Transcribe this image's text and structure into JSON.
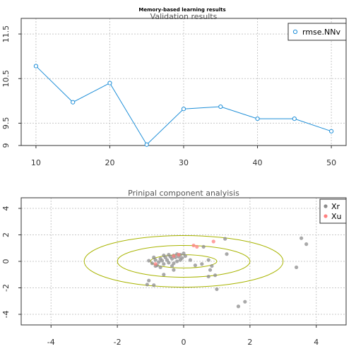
{
  "title": "Memory-based learning results",
  "chart_data": [
    {
      "type": "line",
      "title": "Validation results",
      "xlim": [
        8,
        52
      ],
      "ylim": [
        9.0,
        11.85
      ],
      "xticks": [
        10,
        20,
        30,
        40,
        50
      ],
      "yticks": [
        9.0,
        9.5,
        10.5,
        11.5
      ],
      "grid": true,
      "legend_position": "top-right",
      "color": "#1f8fd8",
      "series": [
        {
          "name": "rmse.NNv",
          "x": [
            10,
            15,
            20,
            25,
            30,
            35,
            40,
            45,
            50
          ],
          "y": [
            10.78,
            9.97,
            10.4,
            9.02,
            9.82,
            9.87,
            9.6,
            9.6,
            9.32
          ]
        }
      ]
    },
    {
      "type": "scatter",
      "title": "Prinipal component analyisis",
      "xlim": [
        -4.9,
        4.9
      ],
      "ylim": [
        -4.8,
        4.8
      ],
      "xticks": [
        -4,
        -2,
        0,
        2,
        4
      ],
      "yticks": [
        -4,
        -2,
        0,
        2,
        4
      ],
      "grid": true,
      "legend_position": "top-right",
      "ellipse_color": "#a8b400",
      "ellipses": [
        {
          "rx": 1.0,
          "ry": 0.5
        },
        {
          "rx": 2.0,
          "ry": 1.2
        },
        {
          "rx": 3.0,
          "ry": 1.95
        }
      ],
      "series": [
        {
          "name": "Xr",
          "color": "#8c8c8c",
          "points": [
            [
              -1.05,
              0.05
            ],
            [
              -0.95,
              -0.15
            ],
            [
              -0.85,
              0.1
            ],
            [
              -0.8,
              -0.3
            ],
            [
              -0.75,
              -0.05
            ],
            [
              -0.7,
              0.2
            ],
            [
              -0.65,
              0.05
            ],
            [
              -0.6,
              -0.2
            ],
            [
              -0.55,
              0.3
            ],
            [
              -0.5,
              0.1
            ],
            [
              -0.45,
              -0.1
            ],
            [
              -0.4,
              0.35
            ],
            [
              -0.35,
              0.2
            ],
            [
              -0.3,
              0.45
            ],
            [
              -0.25,
              0.3
            ],
            [
              -0.2,
              0.55
            ],
            [
              -0.15,
              0.35
            ],
            [
              -0.1,
              0.5
            ],
            [
              -0.05,
              0.25
            ],
            [
              0.0,
              0.6
            ],
            [
              -0.3,
              -0.15
            ],
            [
              -0.6,
              0.45
            ],
            [
              -0.9,
              0.3
            ],
            [
              -0.7,
              -0.45
            ],
            [
              -0.2,
              0.0
            ],
            [
              -0.45,
              0.5
            ],
            [
              -0.1,
              0.1
            ],
            [
              -0.85,
              -0.35
            ],
            [
              0.05,
              0.4
            ],
            [
              -0.35,
              -0.35
            ],
            [
              -1.05,
              -1.45
            ],
            [
              -1.1,
              -1.75
            ],
            [
              -0.9,
              -1.8
            ],
            [
              -0.6,
              -1.0
            ],
            [
              -0.3,
              -0.65
            ],
            [
              0.2,
              0.1
            ],
            [
              0.35,
              -0.3
            ],
            [
              0.6,
              1.1
            ],
            [
              0.75,
              0.1
            ],
            [
              0.85,
              -0.35
            ],
            [
              0.8,
              -0.65
            ],
            [
              0.95,
              -1.05
            ],
            [
              0.75,
              -1.15
            ],
            [
              1.0,
              -2.1
            ],
            [
              1.25,
              1.7
            ],
            [
              1.3,
              0.55
            ],
            [
              0.55,
              -0.2
            ],
            [
              3.55,
              1.75
            ],
            [
              3.7,
              1.3
            ],
            [
              3.4,
              -0.45
            ],
            [
              1.85,
              -3.05
            ],
            [
              1.65,
              -3.4
            ]
          ]
        },
        {
          "name": "Xu",
          "color": "#ff8080",
          "points": [
            [
              -0.85,
              -0.2
            ],
            [
              -0.3,
              0.4
            ],
            [
              -0.15,
              0.5
            ],
            [
              0.3,
              1.2
            ],
            [
              0.4,
              1.1
            ],
            [
              0.9,
              1.5
            ]
          ]
        }
      ]
    }
  ]
}
